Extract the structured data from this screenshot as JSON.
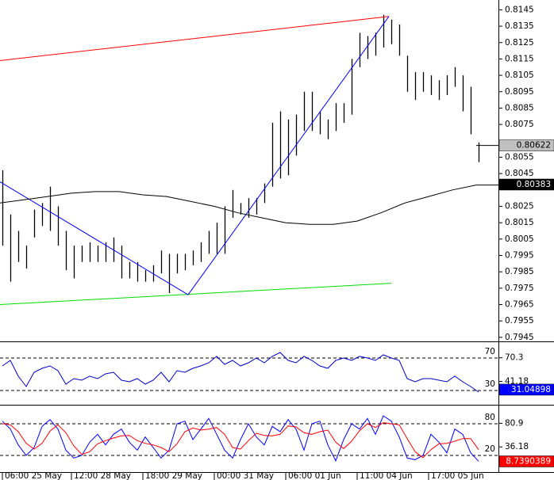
{
  "chart_data": [
    {
      "type": "ohlc",
      "xlim": [
        -0.3,
        62.5
      ],
      "ylim": [
        0.7943,
        0.8151
      ],
      "yticks": [
        0.8145,
        0.8135,
        0.8125,
        0.8115,
        0.8105,
        0.8095,
        0.8085,
        0.8075,
        0.8055,
        0.8045,
        0.8025,
        0.8015,
        0.8005,
        0.7995,
        0.7985,
        0.7975,
        0.7965,
        0.7955,
        0.7945
      ],
      "xticks": [
        {
          "value": 0,
          "label": "06:00 25 May"
        },
        {
          "value": 8.7,
          "label": "12:00 28 May"
        },
        {
          "value": 17.7,
          "label": "18:00 29 May"
        },
        {
          "value": 26.7,
          "label": "00:00 31 May"
        },
        {
          "value": 35.7,
          "label": "06:00 01 Jun"
        },
        {
          "value": 44.7,
          "label": "11:00 04 Jun"
        },
        {
          "value": 53.7,
          "label": "17:00 05 Jun"
        }
      ],
      "color": "#000000",
      "high": [
        0.8047,
        0.802,
        0.801,
        0.8001,
        0.8023,
        0.8027,
        0.8037,
        0.8025,
        0.801,
        0.8001,
        0.8001,
        0.8003,
        0.8001,
        0.8003,
        0.8006,
        0.8001,
        0.7991,
        0.7991,
        0.7986,
        0.7989,
        0.7998,
        0.7996,
        0.7996,
        0.7996,
        0.7998,
        0.8003,
        0.801,
        0.8015,
        0.8025,
        0.8035,
        0.8027,
        0.803,
        0.803,
        0.8039,
        0.8076,
        0.8083,
        0.8078,
        0.8081,
        0.8095,
        0.8095,
        0.8083,
        0.8078,
        0.8088,
        0.8088,
        0.8115,
        0.8131,
        0.8129,
        0.8131,
        0.8142,
        0.8139,
        0.8136,
        0.8117,
        0.8107,
        0.8107,
        0.8105,
        0.8102,
        0.8105,
        0.811,
        0.8105,
        0.8098,
        0.8064
      ],
      "low": [
        0.8001,
        0.7979,
        0.7991,
        0.7987,
        0.8006,
        0.8013,
        0.801,
        0.8001,
        0.7986,
        0.7981,
        0.7991,
        0.7991,
        0.7991,
        0.7991,
        0.7991,
        0.7981,
        0.7981,
        0.7979,
        0.7979,
        0.7979,
        0.7984,
        0.7972,
        0.7984,
        0.7986,
        0.7989,
        0.7991,
        0.7996,
        0.7996,
        0.7996,
        0.8018,
        0.802,
        0.8018,
        0.802,
        0.8027,
        0.8037,
        0.8042,
        0.8044,
        0.8056,
        0.8071,
        0.8071,
        0.8069,
        0.8066,
        0.8071,
        0.8076,
        0.8081,
        0.811,
        0.8115,
        0.8117,
        0.8122,
        0.8124,
        0.8117,
        0.8095,
        0.809,
        0.8095,
        0.8093,
        0.809,
        0.8093,
        0.8098,
        0.8083,
        0.8069,
        0.8052
      ],
      "overlays": [
        {
          "color": "#ff0000",
          "x": [
            -0.3,
            48.7
          ],
          "values": [
            0.8114,
            0.8141
          ]
        },
        {
          "color": "#00dd00",
          "x": [
            -0.3,
            49
          ],
          "values": [
            0.7965,
            0.7978
          ]
        },
        {
          "color": "#0000ff",
          "x": [
            -0.3,
            23.4,
            48.7
          ],
          "values": [
            0.804,
            0.7971,
            0.8141
          ]
        },
        {
          "color": "#000000",
          "x": [
            -0.3,
            2.7,
            5.7,
            8.7,
            11.7,
            14.7,
            17.7,
            20.7,
            23.7,
            26.7,
            29.7,
            32.7,
            35.7,
            38.7,
            41.7,
            44.7,
            47.7,
            50.7,
            53.7,
            56.7,
            59.7,
            62.5
          ],
          "values": [
            0.8027,
            0.8029,
            0.8031,
            0.8033,
            0.8034,
            0.8034,
            0.8032,
            0.8031,
            0.8028,
            0.8025,
            0.8021,
            0.8018,
            0.8015,
            0.8014,
            0.8014,
            0.8016,
            0.8021,
            0.8027,
            0.8031,
            0.8035,
            0.8038,
            0.8038
          ]
        }
      ],
      "last_price": 0.80622,
      "markers": [
        {
          "value": 0.80622,
          "color": "#c0c0c0",
          "text_color": "#000000"
        },
        {
          "value": 0.80383,
          "color": "#000000",
          "text_color": "#ffffff"
        }
      ]
    },
    {
      "type": "line",
      "ylim": [
        13.4,
        89.5
      ],
      "yticks": [
        70.3,
        41.18
      ],
      "levels": [
        70,
        30
      ],
      "series": [
        {
          "color": "#0000c8",
          "values": [
            60.2,
            67.1,
            47.6,
            34.9,
            52.4,
            57.3,
            60.2,
            54.4,
            37.8,
            44.6,
            42.7,
            47.6,
            44.6,
            50.5,
            52.4,
            42.7,
            40.7,
            44.6,
            37.8,
            42.7,
            52.4,
            40.7,
            54.4,
            52.4,
            57.3,
            60.2,
            64.1,
            72.0,
            62.2,
            67.1,
            60.2,
            64.1,
            70.0,
            64.1,
            72.0,
            76.8,
            67.1,
            64.1,
            72.0,
            67.1,
            60.2,
            57.3,
            67.1,
            70.0,
            67.1,
            72.0,
            70.0,
            67.1,
            73.9,
            70.0,
            67.1,
            44.6,
            40.7,
            44.6,
            44.6,
            42.7,
            40.7,
            47.6,
            40.7,
            34.9,
            28.0
          ]
        }
      ],
      "markers": [
        {
          "value": 31.04898,
          "color": "#0000ff",
          "text_color": "#ffffff"
        }
      ]
    },
    {
      "type": "line",
      "ylim": [
        -10,
        113
      ],
      "yticks": [
        80.9,
        36.18
      ],
      "levels": [
        80,
        20
      ],
      "series": [
        {
          "color": "#0000ff",
          "values": [
            85,
            70,
            40,
            20,
            35,
            75,
            88,
            70,
            30,
            15,
            20,
            45,
            60,
            40,
            60,
            70,
            45,
            30,
            55,
            35,
            15,
            30,
            80,
            85,
            50,
            70,
            90,
            60,
            30,
            15,
            50,
            80,
            55,
            40,
            75,
            65,
            88,
            70,
            30,
            80,
            85,
            40,
            10,
            50,
            80,
            70,
            90,
            60,
            95,
            85,
            55,
            15,
            12,
            20,
            60,
            45,
            25,
            70,
            60,
            25,
            9
          ]
        },
        {
          "color": "#ff0000",
          "values": [
            80,
            78,
            65,
            43,
            32,
            43,
            66,
            78,
            63,
            38,
            22,
            27,
            42,
            48,
            53,
            57,
            58,
            48,
            43,
            40,
            35,
            27,
            42,
            65,
            72,
            68,
            70,
            73,
            60,
            35,
            32,
            48,
            62,
            58,
            57,
            60,
            76,
            74,
            63,
            60,
            65,
            68,
            45,
            33,
            47,
            67,
            80,
            73,
            82,
            80,
            78,
            52,
            27,
            16,
            31,
            42,
            43,
            47,
            52,
            52,
            31
          ]
        }
      ],
      "markers": [
        {
          "value": 8.7390389,
          "color": "#ff0000",
          "text_color": "#ffffff"
        }
      ]
    }
  ]
}
